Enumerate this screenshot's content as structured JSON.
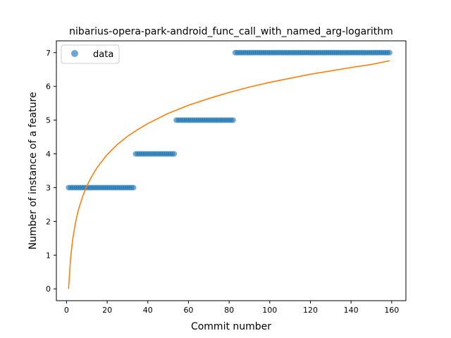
{
  "chart_data": {
    "type": "scatter",
    "title": "nibarius-opera-park-android_func_call_with_named_arg-logarithm",
    "xlabel": "Commit number",
    "ylabel": "Number of instance of a feature",
    "xlim": [
      -5,
      167
    ],
    "ylim": [
      -0.35,
      7.35
    ],
    "xticks": [
      0,
      20,
      40,
      60,
      80,
      100,
      120,
      140,
      160
    ],
    "yticks": [
      0,
      1,
      2,
      3,
      4,
      5,
      6,
      7
    ],
    "grid": false,
    "legend": {
      "position": "upper-left",
      "entries": [
        "data"
      ]
    },
    "series": [
      {
        "name": "data",
        "kind": "points",
        "color": "#1f77b4",
        "segments": [
          {
            "x_from": 1,
            "x_to": 33,
            "y": 3
          },
          {
            "x_from": 34,
            "x_to": 53,
            "y": 4
          },
          {
            "x_from": 54,
            "x_to": 82,
            "y": 5
          },
          {
            "x_from": 83,
            "x_to": 159,
            "y": 7
          }
        ]
      },
      {
        "kind": "line",
        "color": "#ff7f0e",
        "x": [
          1,
          2,
          3,
          4,
          5,
          6,
          8,
          10,
          12,
          15,
          20,
          25,
          30,
          35,
          40,
          50,
          60,
          70,
          80,
          90,
          100,
          110,
          120,
          130,
          140,
          150,
          159
        ],
        "y": [
          0.0,
          0.92,
          1.45,
          1.83,
          2.13,
          2.37,
          2.75,
          3.05,
          3.29,
          3.59,
          3.98,
          4.28,
          4.52,
          4.72,
          4.9,
          5.2,
          5.44,
          5.64,
          5.82,
          5.98,
          6.12,
          6.24,
          6.36,
          6.46,
          6.56,
          6.65,
          6.76
        ]
      }
    ]
  }
}
